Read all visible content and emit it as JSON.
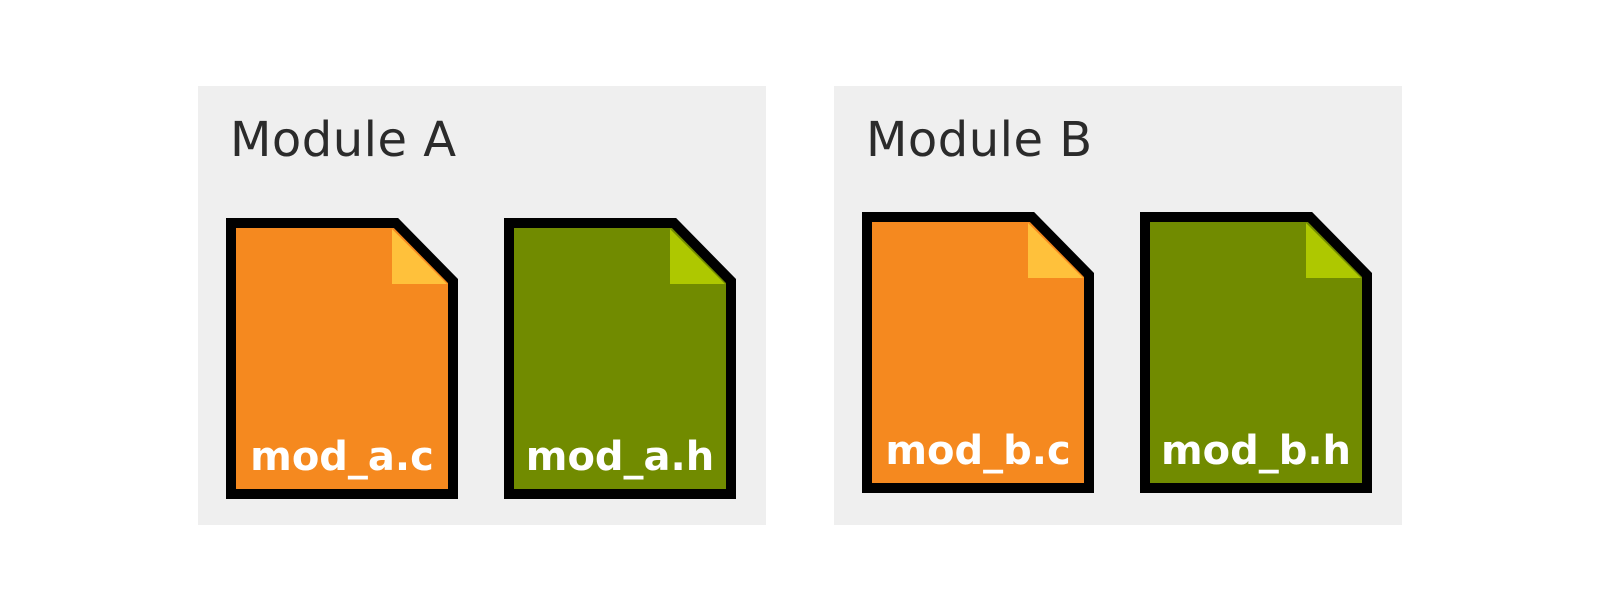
{
  "modules": [
    {
      "title": "Module A",
      "files": [
        {
          "name": "mod_a.c",
          "type": "source",
          "fill": "#f5891f",
          "fold": "#ffc13b"
        },
        {
          "name": "mod_a.h",
          "type": "header",
          "fill": "#718b00",
          "fold": "#aec800"
        }
      ]
    },
    {
      "title": "Module B",
      "files": [
        {
          "name": "mod_b.c",
          "type": "source",
          "fill": "#f5891f",
          "fold": "#ffc13b"
        },
        {
          "name": "mod_b.h",
          "type": "header",
          "fill": "#718b00",
          "fold": "#aec800"
        }
      ]
    }
  ],
  "colors": {
    "module_background": "#efefef",
    "file_outline": "#000000",
    "title_text": "#2b2b2b",
    "file_label_text": "#ffffff"
  }
}
